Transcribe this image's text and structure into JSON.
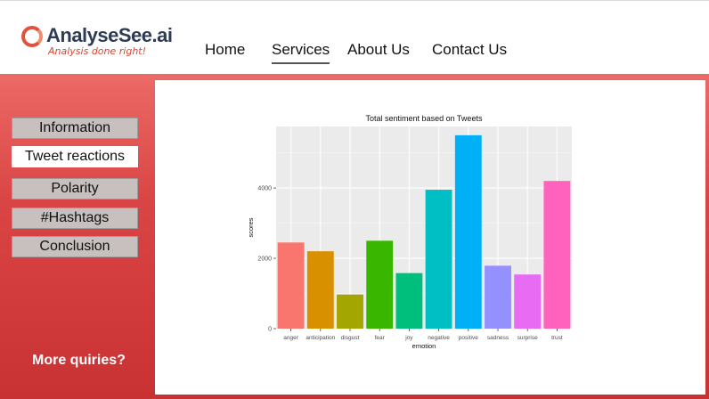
{
  "logo": {
    "name": "AnalyseSee.ai",
    "tagline": "Analysis done right!"
  },
  "nav": [
    "Home",
    "Services",
    "About Us",
    "Contact Us"
  ],
  "nav_active": "Services",
  "sidebar": [
    "Information",
    "Tweet reactions",
    "Polarity",
    "#Hashtags",
    "Conclusion"
  ],
  "sidebar_active": "Tweet reactions",
  "more_link": "More quiries?",
  "colors": {
    "accent": "#d94444",
    "panel_bg": "#ebebeb"
  },
  "chart_data": {
    "type": "bar",
    "title": "Total sentiment based on Tweets",
    "xlabel": "emotion",
    "ylabel": "scores",
    "categories": [
      "anger",
      "anticipation",
      "disgust",
      "fear",
      "joy",
      "negative",
      "positive",
      "sadness",
      "surprise",
      "trust"
    ],
    "values": [
      2450,
      2200,
      970,
      2500,
      1580,
      3950,
      5500,
      1790,
      1540,
      4200
    ],
    "colors": [
      "#f8766d",
      "#d89000",
      "#a3a500",
      "#39b600",
      "#00bf7d",
      "#00bfc4",
      "#00b0f6",
      "#9590ff",
      "#e76bf3",
      "#ff62bc"
    ],
    "yticks": [
      0,
      2000,
      4000
    ],
    "ytick_labels": [
      "0",
      "2000",
      "4000"
    ],
    "ylim": [
      0,
      5750
    ],
    "grid": true
  }
}
